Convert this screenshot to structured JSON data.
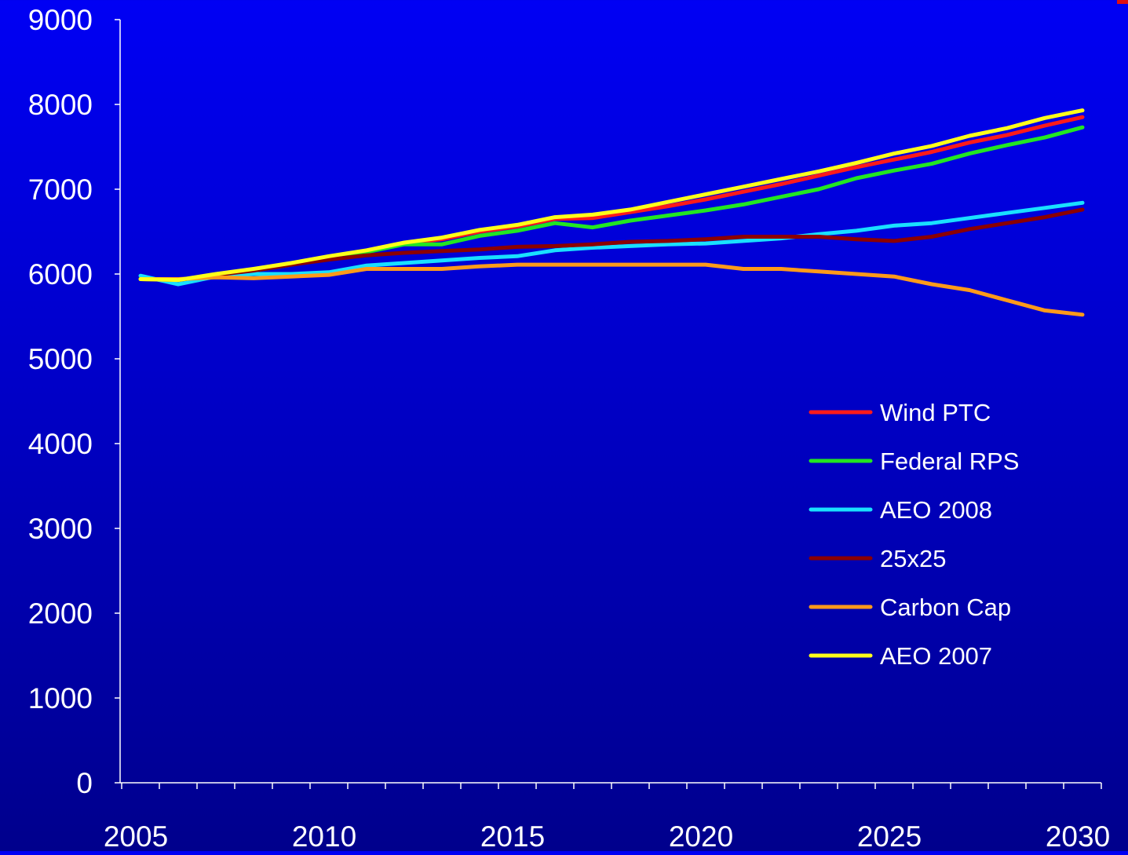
{
  "colors": {
    "axis": "#ffffff",
    "text": "#ffffff",
    "corner_mark": "#e01010"
  },
  "chart_data": {
    "type": "line",
    "title": "",
    "xlabel": "",
    "ylabel": "",
    "xlim": [
      2005,
      2030
    ],
    "ylim": [
      0,
      9000
    ],
    "y_ticks": [
      0,
      1000,
      2000,
      3000,
      4000,
      5000,
      6000,
      7000,
      8000,
      9000
    ],
    "x_tick_labels": [
      "2005",
      "2010",
      "2015",
      "2020",
      "2025",
      "2030"
    ],
    "grid": false,
    "legend_position": "right-middle",
    "x": [
      2005,
      2006,
      2007,
      2008,
      2009,
      2010,
      2011,
      2012,
      2013,
      2014,
      2015,
      2016,
      2017,
      2018,
      2019,
      2020,
      2021,
      2022,
      2023,
      2024,
      2025,
      2026,
      2027,
      2028,
      2029,
      2030
    ],
    "series": [
      {
        "name": "Wind PTC",
        "color": "#ff1a1a",
        "values": [
          5940,
          5930,
          5990,
          6050,
          6120,
          6200,
          6270,
          6360,
          6410,
          6500,
          6560,
          6650,
          6660,
          6730,
          6800,
          6880,
          6970,
          7060,
          7160,
          7260,
          7350,
          7440,
          7550,
          7640,
          7750,
          7850
        ]
      },
      {
        "name": "Federal RPS",
        "color": "#22e622",
        "values": [
          5940,
          5930,
          5990,
          6040,
          6110,
          6190,
          6260,
          6350,
          6350,
          6450,
          6510,
          6600,
          6550,
          6630,
          6690,
          6750,
          6820,
          6910,
          7000,
          7130,
          7220,
          7300,
          7420,
          7520,
          7610,
          7730
        ]
      },
      {
        "name": "AEO 2008",
        "color": "#19e0ff",
        "values": [
          5980,
          5880,
          5970,
          6000,
          6000,
          6020,
          6100,
          6130,
          6160,
          6190,
          6210,
          6280,
          6310,
          6330,
          6350,
          6360,
          6390,
          6420,
          6470,
          6510,
          6570,
          6600,
          6660,
          6720,
          6780,
          6840
        ]
      },
      {
        "name": "25x25",
        "color": "#8b0000",
        "values": [
          5940,
          5930,
          5990,
          6040,
          6110,
          6170,
          6220,
          6250,
          6270,
          6290,
          6320,
          6330,
          6350,
          6380,
          6390,
          6410,
          6440,
          6440,
          6440,
          6410,
          6390,
          6440,
          6530,
          6600,
          6670,
          6760
        ]
      },
      {
        "name": "Carbon Cap",
        "color": "#ff9a1a",
        "values": [
          5940,
          5940,
          5960,
          5950,
          5970,
          5990,
          6060,
          6060,
          6060,
          6090,
          6110,
          6110,
          6110,
          6110,
          6110,
          6110,
          6060,
          6060,
          6030,
          6000,
          5970,
          5880,
          5810,
          5690,
          5570,
          5520
        ]
      },
      {
        "name": "AEO 2007",
        "color": "#ffff1a",
        "values": [
          5940,
          5930,
          6000,
          6060,
          6130,
          6210,
          6280,
          6370,
          6430,
          6520,
          6580,
          6670,
          6700,
          6760,
          6850,
          6940,
          7030,
          7120,
          7210,
          7310,
          7420,
          7510,
          7630,
          7720,
          7840,
          7930
        ]
      }
    ]
  }
}
